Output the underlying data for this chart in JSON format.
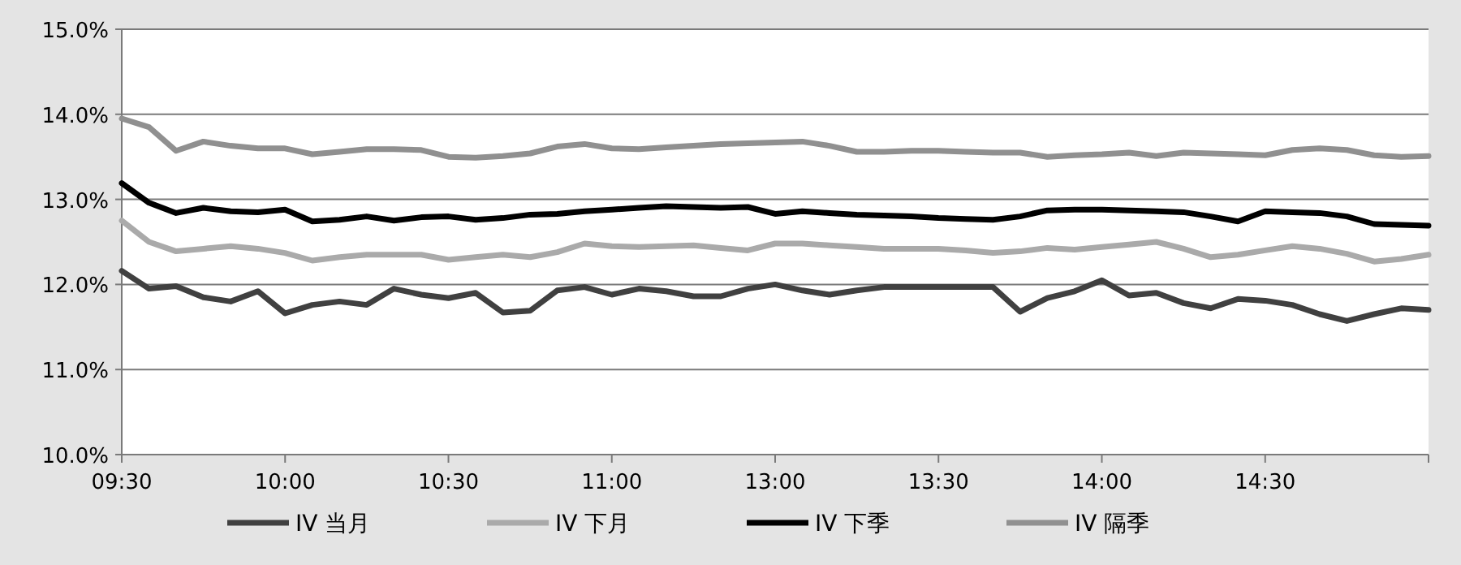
{
  "chart_data": {
    "type": "line",
    "ylim": [
      10,
      15
    ],
    "yticks": [
      {
        "value": 10,
        "label": "10.0%"
      },
      {
        "value": 11,
        "label": "11.0%"
      },
      {
        "value": 12,
        "label": "12.0%"
      },
      {
        "value": 13,
        "label": "13.0%"
      },
      {
        "value": 14,
        "label": "14.0%"
      },
      {
        "value": 15,
        "label": "15.0%"
      }
    ],
    "categories": [
      "09:30",
      null,
      null,
      null,
      null,
      null,
      "10:00",
      null,
      null,
      null,
      null,
      null,
      "10:30",
      null,
      null,
      null,
      null,
      null,
      "11:00",
      null,
      null,
      null,
      null,
      null,
      "13:00",
      null,
      null,
      null,
      null,
      null,
      "13:30",
      null,
      null,
      null,
      null,
      null,
      "14:00",
      null,
      null,
      null,
      null,
      null,
      "14:30",
      null,
      null,
      null,
      null,
      null,
      null
    ],
    "grid": "y",
    "legend": "bottom",
    "marker": "none",
    "line_style": "solid",
    "series": [
      {
        "name": "IV 当月",
        "color": "#404040",
        "values": [
          12.16,
          11.95,
          11.98,
          11.85,
          11.8,
          11.92,
          11.66,
          11.76,
          11.8,
          11.76,
          11.95,
          11.88,
          11.84,
          11.9,
          11.67,
          11.69,
          11.93,
          11.97,
          11.88,
          11.95,
          11.92,
          11.86,
          11.86,
          11.95,
          12.0,
          11.93,
          11.88,
          11.93,
          11.97,
          11.97,
          11.97,
          11.97,
          11.97,
          11.68,
          11.84,
          11.92,
          12.05,
          11.87,
          11.9,
          11.78,
          11.72,
          11.83,
          11.81,
          11.76,
          11.65,
          11.57,
          11.65,
          11.72,
          11.7
        ]
      },
      {
        "name": "IV 下月",
        "color": "#aaaaaa",
        "values": [
          12.75,
          12.5,
          12.39,
          12.42,
          12.45,
          12.42,
          12.37,
          12.28,
          12.32,
          12.35,
          12.35,
          12.35,
          12.29,
          12.32,
          12.35,
          12.32,
          12.38,
          12.48,
          12.45,
          12.44,
          12.45,
          12.46,
          12.43,
          12.4,
          12.48,
          12.48,
          12.46,
          12.44,
          12.42,
          12.42,
          12.42,
          12.4,
          12.37,
          12.39,
          12.43,
          12.41,
          12.44,
          12.47,
          12.5,
          12.42,
          12.32,
          12.35,
          12.4,
          12.45,
          12.42,
          12.36,
          12.27,
          12.3,
          12.35
        ]
      },
      {
        "name": "IV 下季",
        "color": "#000000",
        "values": [
          13.19,
          12.96,
          12.84,
          12.9,
          12.86,
          12.85,
          12.88,
          12.74,
          12.76,
          12.8,
          12.75,
          12.79,
          12.8,
          12.76,
          12.78,
          12.82,
          12.83,
          12.86,
          12.88,
          12.9,
          12.92,
          12.91,
          12.9,
          12.91,
          12.83,
          12.86,
          12.84,
          12.82,
          12.81,
          12.8,
          12.78,
          12.77,
          12.76,
          12.8,
          12.87,
          12.88,
          12.88,
          12.87,
          12.86,
          12.85,
          12.8,
          12.74,
          12.86,
          12.85,
          12.84,
          12.8,
          12.71,
          12.7,
          12.69
        ]
      },
      {
        "name": "IV 隔季",
        "color": "#909090",
        "values": [
          13.95,
          13.85,
          13.57,
          13.68,
          13.63,
          13.6,
          13.6,
          13.53,
          13.56,
          13.59,
          13.59,
          13.58,
          13.5,
          13.49,
          13.51,
          13.54,
          13.62,
          13.65,
          13.6,
          13.59,
          13.61,
          13.63,
          13.65,
          13.66,
          13.67,
          13.68,
          13.63,
          13.56,
          13.56,
          13.57,
          13.57,
          13.56,
          13.55,
          13.55,
          13.5,
          13.52,
          13.53,
          13.55,
          13.51,
          13.55,
          13.54,
          13.53,
          13.52,
          13.58,
          13.6,
          13.58,
          13.52,
          13.5,
          13.51
        ]
      }
    ]
  }
}
